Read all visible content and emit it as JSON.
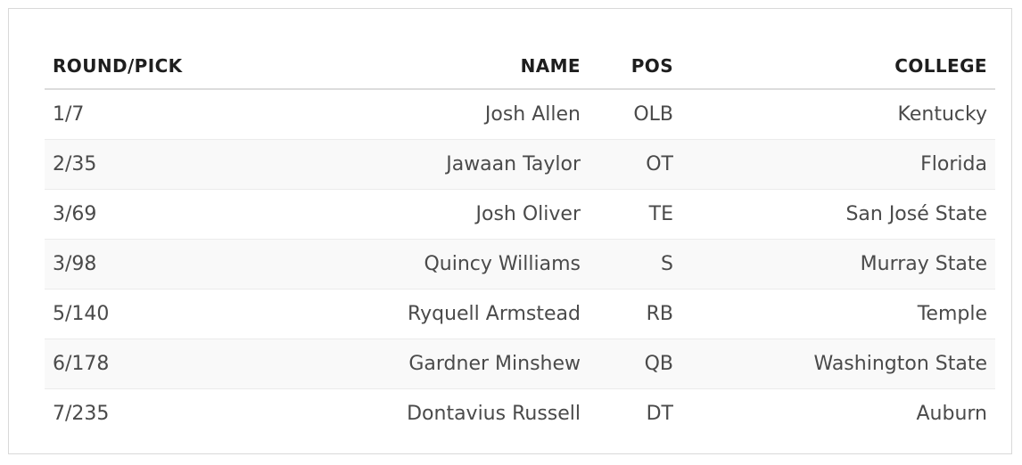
{
  "table": {
    "headers": {
      "round_pick": "ROUND/PICK",
      "name": "NAME",
      "pos": "POS",
      "college": "COLLEGE"
    },
    "rows": [
      {
        "round_pick": "1/7",
        "name": "Josh Allen",
        "pos": "OLB",
        "college": "Kentucky"
      },
      {
        "round_pick": "2/35",
        "name": "Jawaan Taylor",
        "pos": "OT",
        "college": "Florida"
      },
      {
        "round_pick": "3/69",
        "name": "Josh Oliver",
        "pos": "TE",
        "college": "San José State"
      },
      {
        "round_pick": "3/98",
        "name": "Quincy Williams",
        "pos": "S",
        "college": "Murray State"
      },
      {
        "round_pick": "5/140",
        "name": "Ryquell Armstead",
        "pos": "RB",
        "college": "Temple"
      },
      {
        "round_pick": "6/178",
        "name": "Gardner Minshew",
        "pos": "QB",
        "college": "Washington State"
      },
      {
        "round_pick": "7/235",
        "name": "Dontavius Russell",
        "pos": "DT",
        "college": "Auburn"
      }
    ]
  },
  "colors": {
    "header_text": "#1e1e1e",
    "cell_text": "#4a4a4a",
    "stripe": "#f9f9f9",
    "border": "#dcdcdc"
  }
}
